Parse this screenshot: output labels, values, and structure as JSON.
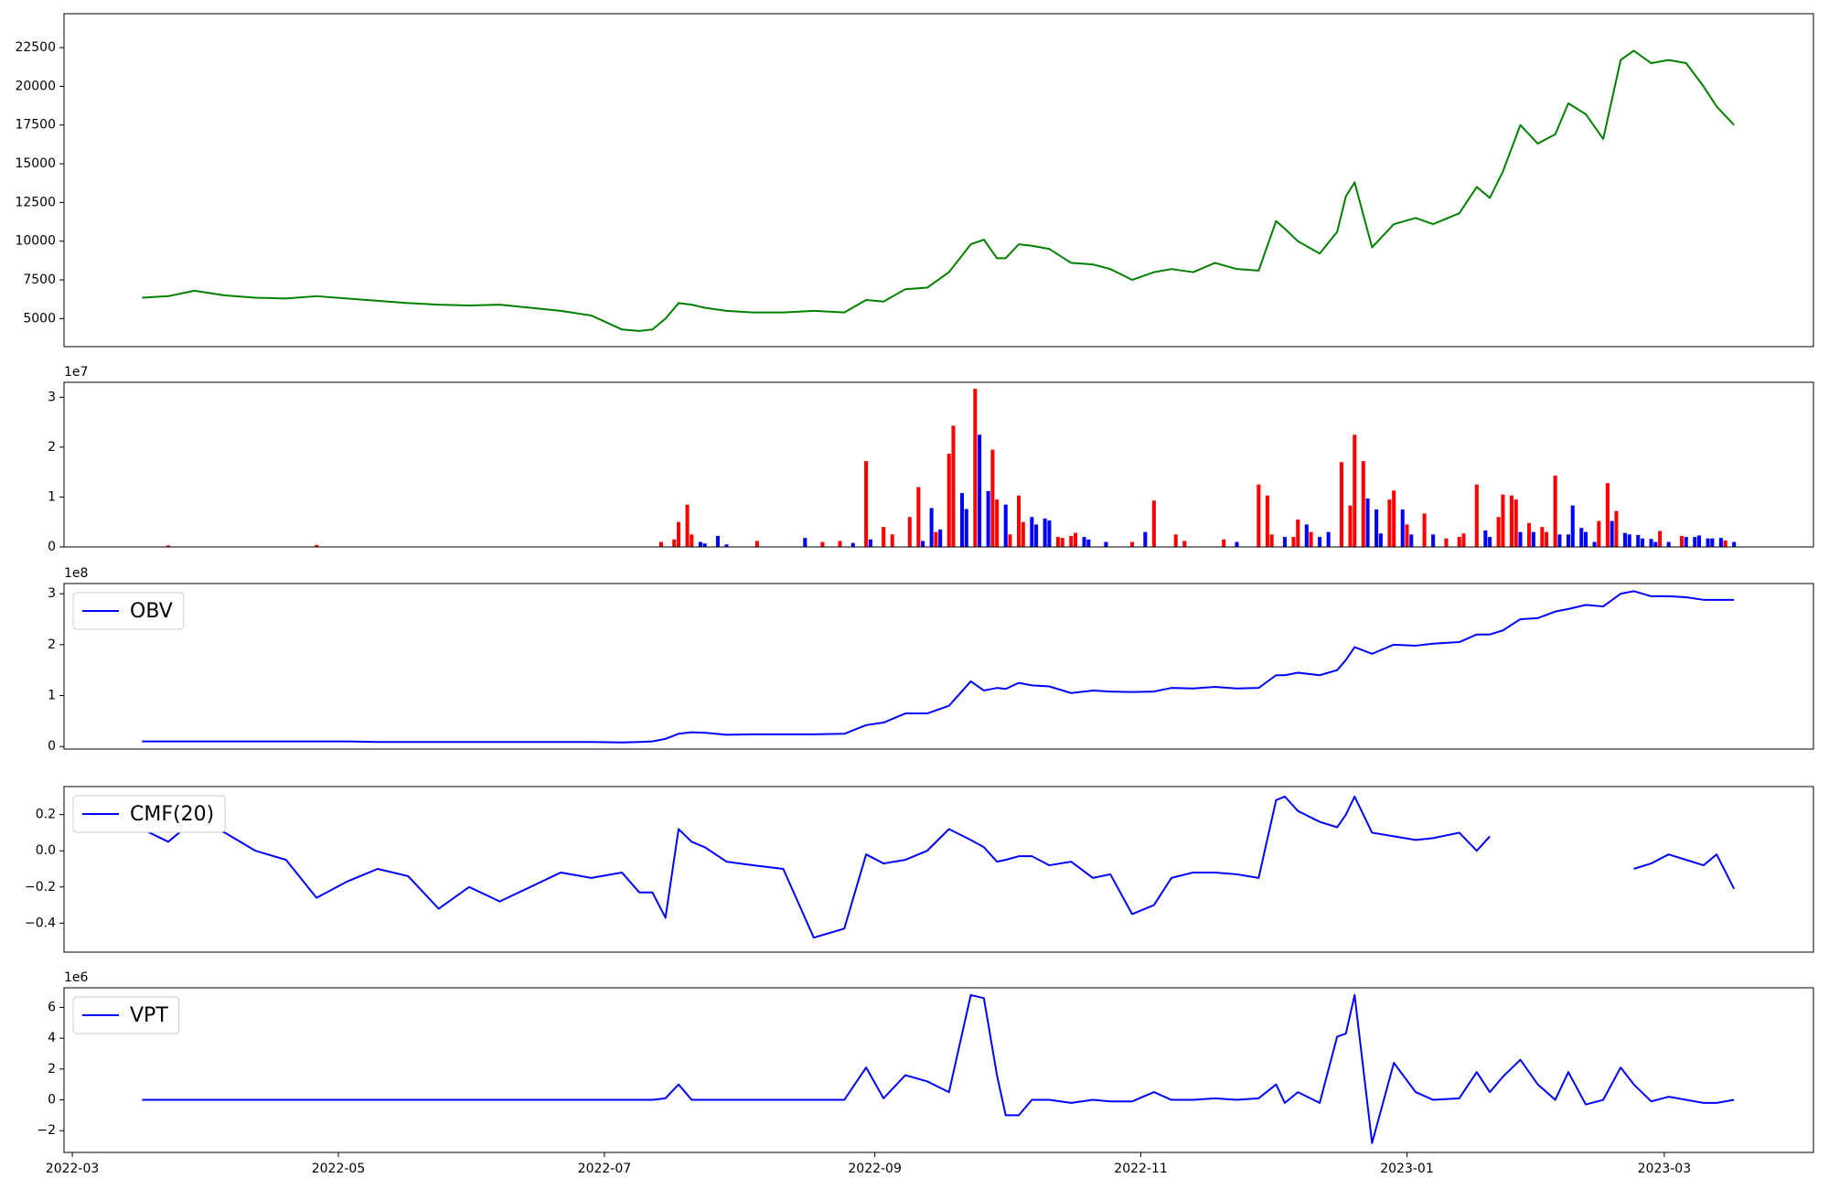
{
  "chart_data": [
    {
      "type": "line",
      "x": [
        16,
        22,
        28,
        35,
        42,
        49,
        56,
        63,
        70,
        77,
        84,
        91,
        98,
        105,
        112,
        119,
        126,
        130,
        133,
        136,
        139,
        142,
        145,
        150,
        156,
        163,
        170,
        177,
        182,
        186,
        191,
        196,
        201,
        206,
        209,
        212,
        214,
        217,
        220,
        224,
        229,
        234,
        238,
        243,
        248,
        252,
        257,
        262,
        267,
        272,
        276,
        278,
        281,
        286,
        290,
        292,
        294,
        298,
        303,
        308,
        312,
        318,
        322,
        325,
        328,
        332,
        336,
        340,
        343,
        347,
        351,
        355,
        358,
        362,
        366,
        370,
        374,
        377,
        381
      ],
      "series": [
        {
          "color": "#008000",
          "values": [
            6350,
            6450,
            6800,
            6500,
            6350,
            6300,
            6450,
            6300,
            6150,
            6000,
            5900,
            5850,
            5900,
            5700,
            5500,
            5200,
            4300,
            4200,
            4300,
            5000,
            6000,
            5900,
            5700,
            5500,
            5400,
            5400,
            5500,
            5400,
            6200,
            6100,
            6900,
            7000,
            8000,
            9800,
            10100,
            8900,
            8900,
            9800,
            9700,
            9500,
            8600,
            8500,
            8200,
            7500,
            8000,
            8200,
            8000,
            8600,
            8200,
            8100,
            11300,
            10800,
            10000,
            9200,
            10600,
            12900,
            13800,
            9600,
            11100,
            11500,
            11100,
            11800,
            13500,
            12800,
            14500,
            17500,
            16300,
            16900,
            18900,
            18200,
            16600,
            21700,
            22300,
            21500,
            21700,
            21500,
            20000,
            18700,
            17500
          ]
        }
      ],
      "xlim": [
        -1.9,
        399.2
      ],
      "ylim": [
        3190,
        24690
      ],
      "yticks": [
        5000,
        7500,
        10000,
        12500,
        15000,
        17500,
        20000,
        22500
      ]
    },
    {
      "type": "bar",
      "x": [
        22,
        56,
        135,
        138,
        139,
        141,
        142,
        144,
        145,
        148,
        150,
        157,
        168,
        172,
        176,
        179,
        182,
        183,
        186,
        188,
        192,
        194,
        195,
        197,
        198,
        199,
        201,
        202,
        204,
        205,
        207,
        208,
        210,
        211,
        212,
        214,
        215,
        217,
        218,
        220,
        221,
        223,
        224,
        226,
        227,
        229,
        230,
        232,
        233,
        237,
        243,
        246,
        248,
        253,
        255,
        264,
        267,
        272,
        274,
        275,
        278,
        280,
        281,
        283,
        284,
        286,
        288,
        291,
        293,
        294,
        296,
        297,
        299,
        300,
        302,
        303,
        305,
        306,
        307,
        310,
        312,
        315,
        318,
        319,
        322,
        324,
        325,
        327,
        328,
        330,
        331,
        332,
        334,
        335,
        337,
        338,
        340,
        341,
        343,
        344,
        346,
        347,
        349,
        350,
        352,
        353,
        354,
        356,
        357,
        359,
        360,
        362,
        363,
        364,
        366,
        369,
        370,
        372,
        373,
        375,
        376,
        378,
        379,
        381
      ],
      "values": [
        0.03,
        0.04,
        0.1,
        0.15,
        0.5,
        0.85,
        0.25,
        0.1,
        0.07,
        0.22,
        0.05,
        0.12,
        0.18,
        0.1,
        0.12,
        0.08,
        1.72,
        0.15,
        0.4,
        0.25,
        0.6,
        1.2,
        0.12,
        0.78,
        0.3,
        0.35,
        1.87,
        2.43,
        1.08,
        0.76,
        3.17,
        2.25,
        1.12,
        1.95,
        0.95,
        0.85,
        0.25,
        1.03,
        0.5,
        0.6,
        0.45,
        0.57,
        0.53,
        0.2,
        0.18,
        0.22,
        0.28,
        0.2,
        0.15,
        0.1,
        0.1,
        0.3,
        0.93,
        0.25,
        0.12,
        0.15,
        0.1,
        1.25,
        1.03,
        0.25,
        0.2,
        0.2,
        0.55,
        0.45,
        0.3,
        0.2,
        0.3,
        1.7,
        0.83,
        2.25,
        1.72,
        0.97,
        0.75,
        0.27,
        0.95,
        1.13,
        0.75,
        0.45,
        0.25,
        0.67,
        0.25,
        0.17,
        0.2,
        0.27,
        1.25,
        0.33,
        0.2,
        0.6,
        1.05,
        1.03,
        0.95,
        0.3,
        0.48,
        0.3,
        0.4,
        0.3,
        1.43,
        0.25,
        0.25,
        0.83,
        0.38,
        0.3,
        0.1,
        0.52,
        1.28,
        0.52,
        0.72,
        0.28,
        0.25,
        0.24,
        0.17,
        0.16,
        0.1,
        0.32,
        0.1,
        0.22,
        0.2,
        0.2,
        0.23,
        0.17,
        0.17,
        0.18,
        0.13,
        0.1
      ],
      "colors": [
        "red",
        "red",
        "red",
        "red",
        "red",
        "red",
        "red",
        "blue",
        "blue",
        "blue",
        "blue",
        "red",
        "blue",
        "red",
        "red",
        "blue",
        "red",
        "blue",
        "red",
        "red",
        "red",
        "red",
        "blue",
        "blue",
        "red",
        "blue",
        "red",
        "red",
        "blue",
        "blue",
        "red",
        "blue",
        "blue",
        "red",
        "red",
        "blue",
        "red",
        "red",
        "red",
        "blue",
        "blue",
        "blue",
        "blue",
        "red",
        "red",
        "red",
        "red",
        "blue",
        "blue",
        "blue",
        "red",
        "blue",
        "red",
        "red",
        "red",
        "red",
        "blue",
        "red",
        "red",
        "red",
        "blue",
        "red",
        "red",
        "blue",
        "red",
        "blue",
        "blue",
        "red",
        "red",
        "red",
        "red",
        "blue",
        "blue",
        "blue",
        "red",
        "red",
        "blue",
        "red",
        "blue",
        "red",
        "blue",
        "red",
        "red",
        "red",
        "red",
        "blue",
        "blue",
        "red",
        "red",
        "red",
        "red",
        "blue",
        "red",
        "blue",
        "red",
        "red",
        "red",
        "blue",
        "blue",
        "blue",
        "blue",
        "blue",
        "blue",
        "red",
        "red",
        "blue",
        "red",
        "blue",
        "blue",
        "blue",
        "blue",
        "blue",
        "blue",
        "red",
        "blue",
        "red",
        "blue",
        "blue",
        "blue",
        "blue",
        "blue",
        "blue",
        "red",
        "blue"
      ],
      "xlim": [
        -1.9,
        399.2
      ],
      "ylim": [
        0,
        3.3
      ],
      "yticks": [
        0,
        1,
        2,
        3
      ],
      "y_offset_label": "1e7"
    },
    {
      "type": "line",
      "x": [
        16,
        22,
        28,
        35,
        42,
        49,
        56,
        63,
        70,
        77,
        84,
        91,
        98,
        105,
        112,
        119,
        126,
        130,
        133,
        136,
        139,
        142,
        145,
        150,
        156,
        163,
        170,
        177,
        182,
        186,
        191,
        196,
        201,
        206,
        209,
        212,
        214,
        217,
        220,
        224,
        229,
        234,
        238,
        243,
        248,
        252,
        257,
        262,
        267,
        272,
        276,
        278,
        281,
        286,
        290,
        292,
        294,
        298,
        303,
        308,
        312,
        318,
        322,
        325,
        328,
        332,
        336,
        340,
        343,
        347,
        351,
        355,
        358,
        362,
        366,
        370,
        374,
        377,
        381
      ],
      "series": [
        {
          "name": "OBV",
          "color": "#0000ff",
          "values": [
            0.1,
            0.1,
            0.1,
            0.1,
            0.1,
            0.1,
            0.1,
            0.1,
            0.09,
            0.09,
            0.09,
            0.09,
            0.09,
            0.09,
            0.09,
            0.09,
            0.08,
            0.09,
            0.1,
            0.15,
            0.25,
            0.28,
            0.27,
            0.23,
            0.24,
            0.24,
            0.24,
            0.25,
            0.42,
            0.47,
            0.65,
            0.65,
            0.8,
            1.28,
            1.1,
            1.15,
            1.13,
            1.25,
            1.2,
            1.18,
            1.05,
            1.1,
            1.08,
            1.07,
            1.08,
            1.15,
            1.14,
            1.17,
            1.14,
            1.15,
            1.4,
            1.4,
            1.45,
            1.4,
            1.5,
            1.7,
            1.95,
            1.82,
            2.0,
            1.98,
            2.02,
            2.05,
            2.2,
            2.2,
            2.28,
            2.5,
            2.52,
            2.65,
            2.7,
            2.78,
            2.75,
            3.0,
            3.05,
            2.95,
            2.95,
            2.93,
            2.88,
            2.88,
            2.88
          ]
        }
      ],
      "xlim": [
        -1.9,
        399.2
      ],
      "ylim": [
        -0.05,
        3.2
      ],
      "yticks": [
        0,
        1,
        2,
        3
      ],
      "y_offset_label": "1e8",
      "legend": "upper left"
    },
    {
      "type": "line",
      "x": [
        16,
        22,
        28,
        35,
        42,
        49,
        56,
        63,
        70,
        77,
        84,
        91,
        98,
        105,
        112,
        119,
        126,
        130,
        133,
        136,
        139,
        142,
        145,
        150,
        156,
        163,
        170,
        177,
        182,
        186,
        191,
        196,
        201,
        206,
        209,
        212,
        214,
        217,
        220,
        224,
        229,
        234,
        238,
        243,
        248,
        252,
        257,
        262,
        267,
        272,
        276,
        278,
        281,
        286,
        290,
        292,
        294,
        298,
        303,
        308,
        312,
        318,
        322,
        325,
        328,
        332,
        336,
        340,
        343,
        347,
        351,
        355,
        358,
        362,
        366,
        370,
        374,
        377,
        381
      ],
      "series": [
        {
          "name": "CMF(20)",
          "color": "#0000ff",
          "values": [
            0.12,
            0.05,
            0.17,
            0.1,
            0.0,
            -0.05,
            -0.26,
            -0.17,
            -0.1,
            -0.14,
            -0.32,
            -0.2,
            -0.28,
            -0.2,
            -0.12,
            -0.15,
            -0.12,
            -0.23,
            -0.23,
            -0.37,
            0.12,
            0.05,
            0.02,
            -0.06,
            -0.08,
            -0.1,
            -0.48,
            -0.43,
            -0.02,
            -0.07,
            -0.05,
            0.0,
            0.12,
            0.06,
            0.02,
            -0.06,
            -0.05,
            -0.03,
            -0.03,
            -0.08,
            -0.06,
            -0.15,
            -0.13,
            -0.35,
            -0.3,
            -0.15,
            -0.12,
            -0.12,
            -0.13,
            -0.15,
            0.28,
            0.3,
            0.22,
            0.16,
            0.13,
            0.2,
            0.3,
            0.1,
            0.08,
            0.06,
            0.07,
            0.1,
            0.0,
            0.08,
            null,
            null,
            null,
            null,
            null,
            null,
            null,
            null,
            -0.1,
            -0.07,
            -0.02,
            -0.05,
            -0.08,
            -0.02,
            -0.21
          ]
        }
      ],
      "xlim": [
        -1.9,
        399.2
      ],
      "ylim": [
        -0.56,
        0.355
      ],
      "yticks": [
        {
          "value": -0.4,
          "label": "−0.4"
        },
        {
          "value": -0.2,
          "label": "−0.2"
        },
        {
          "value": 0,
          "label": "0.0"
        },
        0.2
      ],
      "legend": "upper left"
    },
    {
      "type": "line",
      "x": [
        16,
        22,
        28,
        35,
        42,
        49,
        56,
        63,
        70,
        77,
        84,
        91,
        98,
        105,
        112,
        119,
        126,
        130,
        133,
        136,
        139,
        142,
        145,
        150,
        156,
        163,
        170,
        177,
        182,
        186,
        191,
        196,
        201,
        206,
        209,
        212,
        214,
        217,
        220,
        224,
        229,
        234,
        238,
        243,
        248,
        252,
        257,
        262,
        267,
        272,
        276,
        278,
        281,
        286,
        290,
        292,
        294,
        298,
        303,
        308,
        312,
        318,
        322,
        325,
        328,
        332,
        336,
        340,
        343,
        347,
        351,
        355,
        358,
        362,
        366,
        370,
        374,
        377,
        381
      ],
      "series": [
        {
          "name": "VPT",
          "color": "#0000ff",
          "values": [
            0,
            0,
            0,
            0,
            0,
            0,
            0,
            0,
            0,
            0,
            0,
            0,
            0,
            0,
            0,
            0,
            0,
            0,
            0,
            0.1,
            1.0,
            0,
            0,
            0,
            0,
            0,
            0,
            0,
            2.1,
            0.1,
            1.6,
            1.2,
            0.5,
            6.8,
            6.6,
            1.6,
            -1.0,
            -1.0,
            0.0,
            0.0,
            -0.2,
            0.0,
            -0.1,
            -0.1,
            0.5,
            0.0,
            0.0,
            0.1,
            0.0,
            0.1,
            1.0,
            -0.2,
            0.5,
            -0.2,
            4.1,
            4.3,
            6.8,
            -2.8,
            2.4,
            0.5,
            0.0,
            0.1,
            1.8,
            0.5,
            1.5,
            2.6,
            1.0,
            0.0,
            1.8,
            -0.3,
            0.0,
            2.1,
            1.0,
            -0.1,
            0.2,
            0.0,
            -0.2,
            -0.2,
            0.0
          ]
        }
      ],
      "xlim": [
        -1.9,
        399.2
      ],
      "ylim": [
        -3.41,
        7.27
      ],
      "yticks": [
        {
          "value": -2,
          "label": "−2"
        },
        0,
        2,
        4,
        6
      ],
      "xticks": [
        {
          "value": 0,
          "label": "2022-03"
        },
        {
          "value": 61,
          "label": "2022-05"
        },
        {
          "value": 122,
          "label": "2022-07"
        },
        {
          "value": 184,
          "label": "2022-09"
        },
        {
          "value": 245,
          "label": "2022-11"
        },
        {
          "value": 306,
          "label": "2023-01"
        },
        {
          "value": 365,
          "label": "2023-03"
        }
      ],
      "y_offset_label": "1e6",
      "legend": "upper left"
    }
  ]
}
